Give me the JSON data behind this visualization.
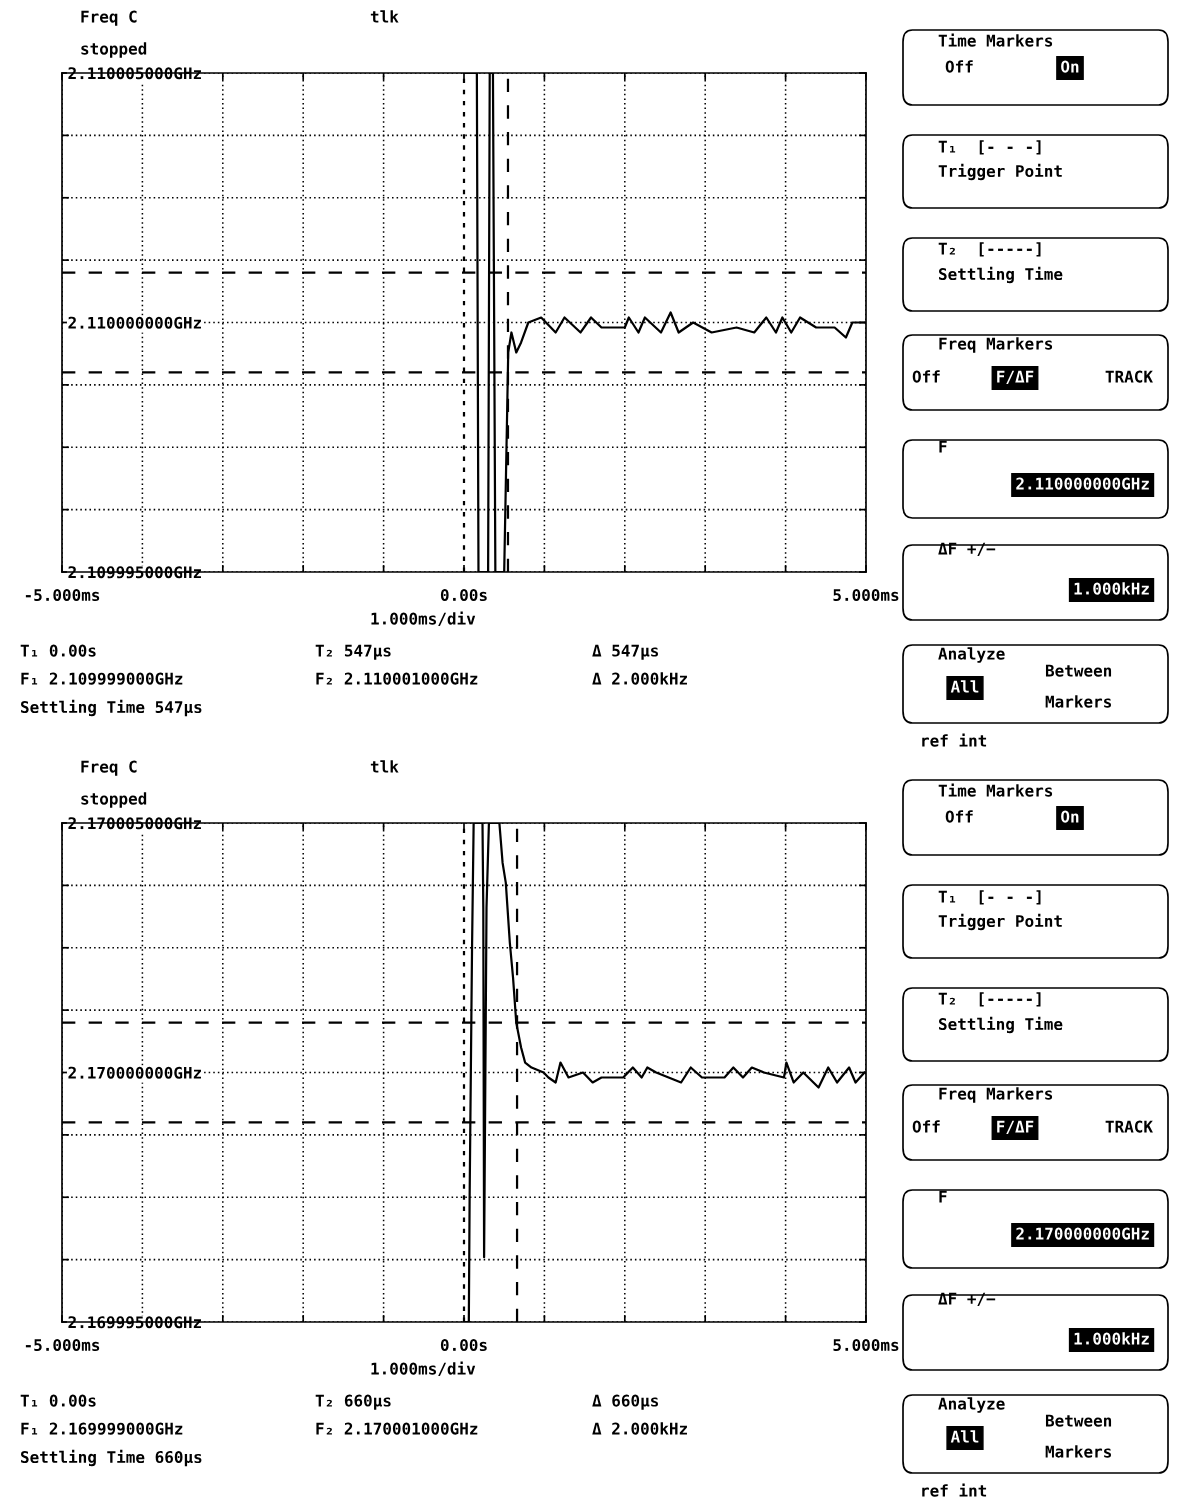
{
  "chart_data": [
    {
      "type": "line",
      "xlim": [
        -5,
        5
      ],
      "xticks": [
        {
          "value": -5,
          "label": "-5.000ms"
        },
        {
          "value": -4,
          "label": null
        },
        {
          "value": -3,
          "label": null
        },
        {
          "value": -2,
          "label": null
        },
        {
          "value": -1,
          "label": null
        },
        {
          "value": 0,
          "label": "0.00s"
        },
        {
          "value": 1,
          "label": null
        },
        {
          "value": 2,
          "label": null
        },
        {
          "value": 3,
          "label": null
        },
        {
          "value": 4,
          "label": null
        },
        {
          "value": 5,
          "label": "5.000ms"
        }
      ],
      "ylim": [
        2.109995,
        2.110005
      ],
      "yticks": [
        {
          "value": 2.109995,
          "label": "2.109995000GHz"
        },
        {
          "value": 2.10999625,
          "label": null
        },
        {
          "value": 2.1099975,
          "label": null
        },
        {
          "value": 2.10999875,
          "label": null
        },
        {
          "value": 2.11,
          "label": "2.110000000GHz"
        },
        {
          "value": 2.11000125,
          "label": null
        },
        {
          "value": 2.1100025,
          "label": null
        },
        {
          "value": 2.11000375,
          "label": null
        },
        {
          "value": 2.110005,
          "label": "2.110005000GHz"
        }
      ],
      "grid": true,
      "line_style": "solid",
      "series": [
        {
          "color": "#000000",
          "x": [
            0.0,
            0.16,
            0.18,
            0.3,
            0.32,
            0.36,
            0.39,
            0.5,
            0.54,
            0.55,
            0.59,
            0.65,
            0.71,
            0.8,
            0.96,
            1.14,
            1.25,
            1.45,
            1.58,
            1.71,
            2.0,
            2.05,
            2.17,
            2.25,
            2.45,
            2.57,
            2.67,
            2.85,
            3.08,
            3.39,
            3.61,
            3.76,
            3.88,
            3.96,
            4.07,
            4.18,
            4.38,
            4.61,
            4.75,
            4.83,
            4.98
          ],
          "values": [
            2.110005,
            2.110005,
            2.109995,
            2.109995,
            2.110005,
            2.110005,
            2.109995,
            2.109995,
            2.1099985,
            2.1099994,
            2.1099998,
            2.1099994,
            2.1099996,
            2.11,
            2.1100001,
            2.1099998,
            2.1100001,
            2.1099998,
            2.1100001,
            2.1099999,
            2.1099999,
            2.1100001,
            2.1099998,
            2.1100001,
            2.1099998,
            2.1100002,
            2.1099998,
            2.11,
            2.1099998,
            2.1099999,
            2.1099998,
            2.1100001,
            2.1099998,
            2.1100001,
            2.1099998,
            2.1100001,
            2.1099999,
            2.1099999,
            2.1099997,
            2.11,
            2.11
          ]
        }
      ],
      "ref_lines": [
        {
          "axis": "y",
          "value": 2.109999,
          "label": null,
          "color": "#000000",
          "line_style": "dashed"
        },
        {
          "axis": "y",
          "value": 2.110001,
          "label": null,
          "color": "#000000",
          "line_style": "dashed"
        },
        {
          "axis": "x",
          "value": 0,
          "label": null,
          "color": "#000000",
          "line_style": "dotted"
        },
        {
          "axis": "x",
          "value": 0.547,
          "label": null,
          "color": "#000000",
          "line_style": "dashed"
        }
      ],
      "annotations": [
        "Freq C",
        "stopped",
        "tlk",
        "1.000ms/div",
        "T₁ 0.00s",
        "T₂ 547μs",
        "Δ 547μs",
        "F₁ 2.109999000GHz",
        "F₂ 2.110001000GHz",
        "Δ 2.000kHz",
        "Settling Time 547μs",
        "Time Markers",
        "Off",
        "On",
        "T₁  [- - -]",
        "Trigger Point",
        "T₂  [-----]",
        "Settling Time",
        "Freq Markers",
        "Off",
        "F/ΔF",
        "TRACK",
        "F",
        "2.110000000GHz",
        "ΔF +/−",
        "1.000kHz",
        "Analyze",
        "Between",
        "Markers",
        "All",
        "ref int"
      ]
    },
    {
      "type": "line",
      "xlim": [
        -5,
        5
      ],
      "xticks": [
        {
          "value": -5,
          "label": "-5.000ms"
        },
        {
          "value": -4,
          "label": null
        },
        {
          "value": -3,
          "label": null
        },
        {
          "value": -2,
          "label": null
        },
        {
          "value": -1,
          "label": null
        },
        {
          "value": 0,
          "label": "0.00s"
        },
        {
          "value": 1,
          "label": null
        },
        {
          "value": 2,
          "label": null
        },
        {
          "value": 3,
          "label": null
        },
        {
          "value": 4,
          "label": null
        },
        {
          "value": 5,
          "label": "5.000ms"
        }
      ],
      "ylim": [
        2.169995,
        2.170005
      ],
      "yticks": [
        {
          "value": 2.169995,
          "label": "2.169995000GHz"
        },
        {
          "value": 2.16999625,
          "label": null
        },
        {
          "value": 2.1699975,
          "label": null
        },
        {
          "value": 2.16999875,
          "label": null
        },
        {
          "value": 2.17,
          "label": "2.170000000GHz"
        },
        {
          "value": 2.17000125,
          "label": null
        },
        {
          "value": 2.1700025,
          "label": null
        },
        {
          "value": 2.17000375,
          "label": null
        },
        {
          "value": 2.170005,
          "label": "2.170005000GHz"
        }
      ],
      "grid": true,
      "line_style": "solid",
      "series": [
        {
          "color": "#000000",
          "x": [
            0.0,
            0.06,
            0.07,
            0.1,
            0.12,
            0.23,
            0.24,
            0.25,
            0.28,
            0.31,
            0.44,
            0.48,
            0.52,
            0.57,
            0.61,
            0.65,
            0.71,
            0.76,
            0.84,
            0.99,
            1.05,
            1.14,
            1.2,
            1.3,
            1.48,
            1.6,
            1.71,
            1.98,
            2.1,
            2.21,
            2.28,
            2.39,
            2.7,
            2.82,
            2.96,
            3.24,
            3.35,
            3.47,
            3.58,
            3.73,
            3.98,
            4.01,
            4.1,
            4.22,
            4.41,
            4.53,
            4.64,
            4.79,
            4.87,
            4.98
          ],
          "values": [
            2.169995,
            2.169995,
            2.1699975,
            2.1700025,
            2.170005,
            2.170005,
            2.1700033,
            2.1699963,
            2.1700033,
            2.170005,
            2.170005,
            2.1700042,
            2.1700038,
            2.1700026,
            2.1700019,
            2.170001,
            2.1700005,
            2.1700002,
            2.1700001,
            2.17,
            2.1699999,
            2.1699998,
            2.1700002,
            2.1699999,
            2.17,
            2.1699998,
            2.1699999,
            2.1699999,
            2.1700001,
            2.1699999,
            2.1700001,
            2.17,
            2.1699998,
            2.1700001,
            2.1699999,
            2.1699999,
            2.1700001,
            2.1699999,
            2.1700001,
            2.17,
            2.1699999,
            2.1700002,
            2.1699998,
            2.17,
            2.1699997,
            2.1700001,
            2.1699998,
            2.1700001,
            2.1699998,
            2.17
          ]
        }
      ],
      "ref_lines": [
        {
          "axis": "y",
          "value": 2.169999,
          "label": null,
          "color": "#000000",
          "line_style": "dashed"
        },
        {
          "axis": "y",
          "value": 2.170001,
          "label": null,
          "color": "#000000",
          "line_style": "dashed"
        },
        {
          "axis": "x",
          "value": 0,
          "label": null,
          "color": "#000000",
          "line_style": "dotted"
        },
        {
          "axis": "x",
          "value": 0.66,
          "label": null,
          "color": "#000000",
          "line_style": "dashed"
        }
      ],
      "annotations": [
        "Freq C",
        "stopped",
        "tlk",
        "1.000ms/div",
        "T₁ 0.00s",
        "T₂ 660μs",
        "Δ 660μs",
        "F₁ 2.169999000GHz",
        "F₂ 2.170001000GHz",
        "Δ 2.000kHz",
        "Settling Time 660μs",
        "Time Markers",
        "Off",
        "On",
        "T₁  [- - -]",
        "Trigger Point",
        "T₂  [-----]",
        "Settling Time",
        "Freq Markers",
        "Off",
        "F/ΔF",
        "TRACK",
        "F",
        "2.170000000GHz",
        "ΔF +/−",
        "1.000kHz",
        "Analyze",
        "Between",
        "Markers",
        "All",
        "ref int"
      ]
    }
  ]
}
